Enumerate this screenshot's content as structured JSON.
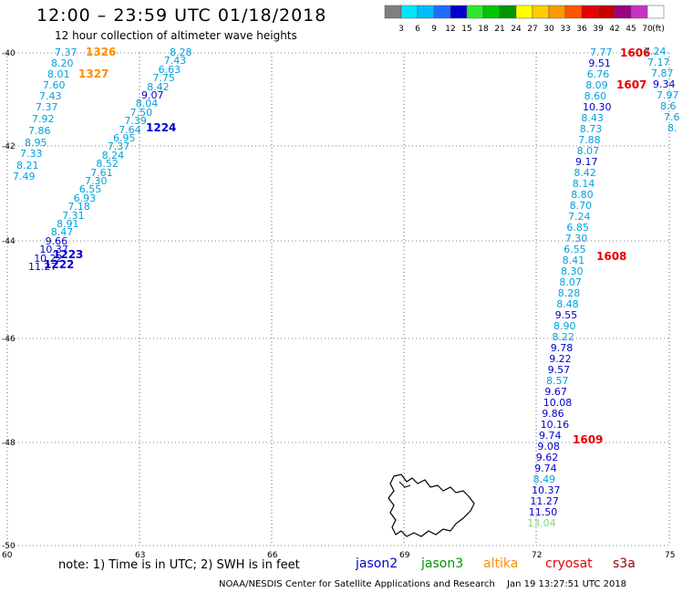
{
  "header": {
    "title": "12:00 – 23:59 UTC 01/18/2018",
    "subtitle": "12 hour collection of altimeter wave heights"
  },
  "colorbar": {
    "colors": [
      "#7f7f7f",
      "#00e5ff",
      "#00bfff",
      "#1e6fff",
      "#0000cd",
      "#2ee82e",
      "#00c800",
      "#009600",
      "#ffff00",
      "#ffcc00",
      "#ff9900",
      "#ff5500",
      "#e60000",
      "#c80000",
      "#9b0082",
      "#c832c8",
      "#ffffff",
      "#000000"
    ],
    "labels": [
      "3",
      "6",
      "9",
      "12",
      "15",
      "18",
      "21",
      "24",
      "27",
      "30",
      "33",
      "36",
      "39",
      "42",
      "45",
      "70",
      "(ft)"
    ]
  },
  "axes": {
    "lat_labels": [
      "-40",
      "-42",
      "-44",
      "-46",
      "-48",
      "-50"
    ],
    "lon_labels": [
      "60",
      "63",
      "66",
      "69",
      "72",
      "75"
    ]
  },
  "tracks": [
    {
      "id": "t1326",
      "color": "#00a0dc",
      "time": "1326",
      "time_color": "#ff8c00",
      "values": [
        "7.37",
        "8.20",
        "8.01",
        "7.60",
        "7.43",
        "7.37",
        "7.92",
        "7.86",
        "8.95",
        "7.33",
        "8.21",
        "7.49"
      ]
    },
    {
      "id": "t1327",
      "color": "#00a0dc",
      "time": "1327",
      "time_color": "#ff8c00",
      "values": []
    },
    {
      "id": "t1223",
      "color": "#00a0dc",
      "time": "1224",
      "time_color": "#0000cd",
      "values": [
        "8.28",
        "7.43",
        "6.63",
        "7.75",
        "8.42",
        "9.07",
        "8.04",
        "7.50",
        "7.39",
        "7.64",
        "6.95",
        "7.37",
        "8.24",
        "8.52",
        "7.61",
        "7.30",
        "6.55",
        "6.93",
        "7.18",
        "7.31",
        "8.91",
        "8.47",
        "9.66",
        "10.37",
        "10.22",
        "11.27"
      ]
    },
    {
      "id": "tcryo",
      "color": "#00a0dc",
      "time": "",
      "time_color": "#0000cd",
      "values": [
        "7.77",
        "9.51",
        "6.76",
        "8.09",
        "8.60",
        "10.30",
        "8.43",
        "8.73",
        "7.88",
        "8.07",
        "9.17",
        "8.42",
        "8.14",
        "8.80",
        "8.70",
        "7.24",
        "6.85",
        "7.30",
        "6.55",
        "8.41",
        "8.30",
        "8.07",
        "8.28",
        "8.48",
        "9.55",
        "8.90",
        "8.22",
        "9.78",
        "9.22",
        "9.57",
        "8.57",
        "9.67",
        "10.08",
        "9.86",
        "10.16",
        "9.74",
        "9.08",
        "9.62",
        "9.74",
        "8.49",
        "10.37",
        "11.27",
        "11.50",
        "13.04"
      ]
    },
    {
      "id": "tright",
      "color": "#00a0dc",
      "time": "",
      "time_color": "#c80000",
      "values": [
        "7.24",
        "7.17",
        "7.87",
        "9.34",
        "7.97",
        "8.6",
        "7.6",
        "8."
      ]
    }
  ],
  "time_labels": [
    {
      "text": "1223",
      "color": "#0000cd"
    },
    {
      "text": "1222",
      "color": "#0000cd"
    },
    {
      "text": "1606",
      "color": "#e60000"
    },
    {
      "text": "1607",
      "color": "#e60000"
    },
    {
      "text": "1608",
      "color": "#e60000"
    },
    {
      "text": "1609",
      "color": "#e60000"
    }
  ],
  "footer": {
    "note": "note:  1) Time is in UTC; 2) SWH is in feet",
    "legend": [
      {
        "label": "jason2",
        "color": "#0000cd"
      },
      {
        "label": "jason3",
        "color": "#009600"
      },
      {
        "label": "altika",
        "color": "#ff8c00"
      },
      {
        "label": "cryosat",
        "color": "#e60000"
      },
      {
        "label": "s3a",
        "color": "#9b0000"
      }
    ],
    "credit": "NOAA/NESDIS Center for Satellite Applications and Research",
    "timestamp": "Jan 19 13:27:51 UTC 2018"
  }
}
